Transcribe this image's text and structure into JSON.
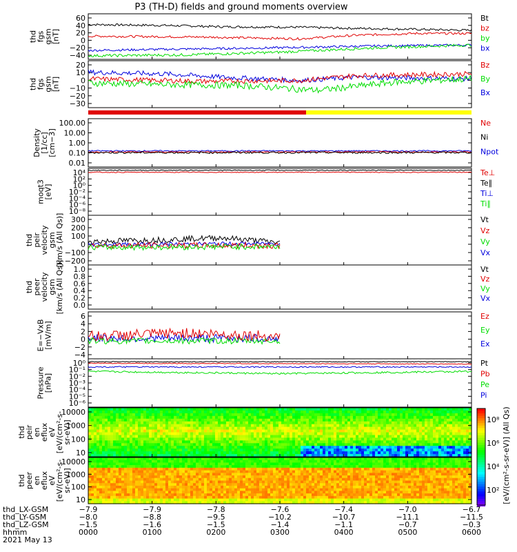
{
  "title": "P3 (TH-D) fields and ground moments overview",
  "colors": {
    "black": "#000000",
    "red": "#e00000",
    "green": "#00dd00",
    "blue": "#0000dd"
  },
  "chart_data": [
    {
      "type": "line",
      "ylabel": [
        "thd",
        "fgs",
        "gsm",
        "[nT]"
      ],
      "yticks": [
        "60",
        "40",
        "20",
        "0",
        "−20",
        "−40"
      ],
      "ylim": [
        -40,
        62
      ],
      "legend": [
        {
          "name": "Bt",
          "color": "black"
        },
        {
          "name": "bz",
          "color": "red"
        },
        {
          "name": "by",
          "color": "green"
        },
        {
          "name": "bx",
          "color": "blue"
        }
      ],
      "series": [
        {
          "name": "Bt",
          "color": "black",
          "knots": [
            [
              0,
              38
            ],
            [
              0.2,
              36
            ],
            [
              0.35,
              33
            ],
            [
              0.55,
              32
            ],
            [
              0.65,
              30
            ],
            [
              0.8,
              28
            ],
            [
              1,
              25
            ]
          ],
          "noise": 2.5
        },
        {
          "name": "bz",
          "color": "red",
          "knots": [
            [
              0,
              12
            ],
            [
              0.3,
              10
            ],
            [
              0.55,
              6
            ],
            [
              0.7,
              14
            ],
            [
              0.85,
              18
            ],
            [
              1,
              18
            ]
          ],
          "noise": 2.5
        },
        {
          "name": "bx",
          "color": "blue",
          "knots": [
            [
              0,
              -20
            ],
            [
              0.25,
              -17
            ],
            [
              0.5,
              -14
            ],
            [
              0.75,
              -10
            ],
            [
              1,
              -8
            ]
          ],
          "noise": 2.5
        },
        {
          "name": "by",
          "color": "green",
          "knots": [
            [
              0,
              -32
            ],
            [
              0.25,
              -30
            ],
            [
              0.5,
              -24
            ],
            [
              0.75,
              -14
            ],
            [
              1,
              -8
            ]
          ],
          "noise": 3
        }
      ]
    },
    {
      "type": "line",
      "ylabel": [
        "thd",
        "fgs",
        "gsm",
        "[nT]"
      ],
      "yticks": [
        "20",
        "10",
        "0",
        "−10",
        "−20",
        "−30"
      ],
      "ylim": [
        -35,
        22
      ],
      "legend": [
        {
          "name": "Bz",
          "color": "red"
        },
        {
          "name": "By",
          "color": "green"
        },
        {
          "name": "Bx",
          "color": "blue"
        }
      ],
      "series": [
        {
          "name": "Bx",
          "color": "blue",
          "knots": [
            [
              0,
              8
            ],
            [
              0.2,
              6
            ],
            [
              0.35,
              2
            ],
            [
              0.55,
              -2
            ],
            [
              0.7,
              2
            ],
            [
              1,
              0
            ]
          ],
          "noise": 3
        },
        {
          "name": "Bz",
          "color": "red",
          "knots": [
            [
              0,
              0
            ],
            [
              0.3,
              -3
            ],
            [
              0.55,
              -2
            ],
            [
              0.7,
              4
            ],
            [
              1,
              6
            ]
          ],
          "noise": 3
        },
        {
          "name": "By",
          "color": "green",
          "knots": [
            [
              0,
              -5
            ],
            [
              0.2,
              -7
            ],
            [
              0.4,
              -8
            ],
            [
              0.6,
              -14
            ],
            [
              0.8,
              -4
            ],
            [
              1,
              0
            ]
          ],
          "noise": 4
        }
      ]
    },
    {
      "type": "line",
      "ylabel": [
        "Density",
        "[1/cc]",
        "[cm−3]"
      ],
      "yticks": [
        "100.00",
        "10.00",
        "1.00",
        "0.10",
        "0.01"
      ],
      "ylim": [
        -2,
        2.2
      ],
      "log": true,
      "legend": [
        {
          "name": "Ne",
          "color": "red"
        },
        {
          "name": "Ni",
          "color": "black"
        },
        {
          "name": "Npot",
          "color": "blue"
        }
      ],
      "series": [
        {
          "name": "Npot",
          "color": "blue",
          "knots": [
            [
              0,
              -0.6
            ],
            [
              1,
              -0.6
            ]
          ],
          "noise": 0.05
        },
        {
          "name": "Ne",
          "color": "red",
          "knots": [
            [
              0,
              -0.7
            ],
            [
              1,
              -0.7
            ]
          ],
          "noise": 0.05
        },
        {
          "name": "Ni",
          "color": "black",
          "knots": [
            [
              0,
              -0.75
            ],
            [
              1,
              -0.75
            ]
          ],
          "noise": 0.08
        }
      ]
    },
    {
      "type": "line",
      "ylabel": [
        "moqt3",
        "[eV]"
      ],
      "yticks": [
        "10⁴",
        "10²",
        "10⁰",
        "10⁻²",
        "10⁻⁴",
        "10⁻⁶",
        "10⁻⁸"
      ],
      "ylim": [
        -8,
        4
      ],
      "log": true,
      "legend": [
        {
          "name": "Te⊥",
          "color": "red"
        },
        {
          "name": "Te∥",
          "color": "black"
        },
        {
          "name": "Ti⊥",
          "color": "blue"
        },
        {
          "name": "Ti∥",
          "color": "green"
        }
      ],
      "series": [
        {
          "name": "Te∥",
          "color": "black",
          "knots": [
            [
              0,
              3.5
            ],
            [
              1,
              3.5
            ]
          ],
          "noise": 0.1
        },
        {
          "name": "Te⊥",
          "color": "red",
          "knots": [
            [
              0,
              3
            ],
            [
              1,
              3
            ]
          ],
          "noise": 0.1
        }
      ]
    },
    {
      "type": "line",
      "ylabel": [
        "thd",
        "peir",
        "velocity",
        "gsm",
        "[km/s (All Qs)]"
      ],
      "yticks": [
        "300",
        "200",
        "100",
        "0",
        "−100",
        "−200"
      ],
      "ylim": [
        -200,
        310
      ],
      "legend": [
        {
          "name": "Vt",
          "color": "black"
        },
        {
          "name": "Vz",
          "color": "red"
        },
        {
          "name": "Vy",
          "color": "green"
        },
        {
          "name": "Vx",
          "color": "blue"
        }
      ],
      "series": [
        {
          "name": "Vt",
          "color": "black",
          "knots": [
            [
              0,
              40
            ],
            [
              0.2,
              60
            ],
            [
              0.35,
              80
            ],
            [
              0.5,
              30
            ]
          ],
          "noise": 30,
          "xmax": 0.5
        },
        {
          "name": "Vx",
          "color": "blue",
          "knots": [
            [
              0,
              10
            ],
            [
              0.5,
              20
            ]
          ],
          "noise": 20,
          "xmax": 0.5
        },
        {
          "name": "Vz",
          "color": "red",
          "knots": [
            [
              0,
              0
            ],
            [
              0.5,
              0
            ]
          ],
          "noise": 30,
          "xmax": 0.5
        },
        {
          "name": "Vy",
          "color": "green",
          "knots": [
            [
              0,
              -20
            ],
            [
              0.5,
              -10
            ]
          ],
          "noise": 30,
          "xmax": 0.5
        }
      ]
    },
    {
      "type": "line",
      "ylabel": [
        "thd",
        "peer",
        "velocity",
        "gsm",
        "[km/s (All Qs)]"
      ],
      "yticks": [
        "1.0",
        "0.8",
        "0.6",
        "0.4",
        "0.2",
        "0.0"
      ],
      "ylim": [
        0,
        1
      ],
      "legend": [
        {
          "name": "Vt",
          "color": "black"
        },
        {
          "name": "Vz",
          "color": "red"
        },
        {
          "name": "Vy",
          "color": "green"
        },
        {
          "name": "Vx",
          "color": "blue"
        }
      ],
      "series": []
    },
    {
      "type": "line",
      "ylabel": [
        "E=−VxB",
        "[mV/m]"
      ],
      "yticks": [
        "6",
        "4",
        "2",
        "0",
        "−2",
        "−4"
      ],
      "ylim": [
        -4,
        6.5
      ],
      "legend": [
        {
          "name": "Ez",
          "color": "red"
        },
        {
          "name": "Ey",
          "color": "green"
        },
        {
          "name": "Ex",
          "color": "blue"
        }
      ],
      "series": [
        {
          "name": "Ex",
          "color": "blue",
          "knots": [
            [
              0,
              0.6
            ],
            [
              0.5,
              0.6
            ]
          ],
          "noise": 0.9,
          "xmax": 0.5
        },
        {
          "name": "Ey",
          "color": "green",
          "knots": [
            [
              0,
              0
            ],
            [
              0.5,
              0
            ]
          ],
          "noise": 0.7,
          "xmax": 0.5
        },
        {
          "name": "Ez",
          "color": "red",
          "knots": [
            [
              0,
              1
            ],
            [
              0.25,
              1.8
            ],
            [
              0.5,
              1
            ]
          ],
          "noise": 1.2,
          "xmax": 0.5
        }
      ]
    },
    {
      "type": "line",
      "ylabel": [
        "Pressure",
        "[nPa]"
      ],
      "yticks": [
        "10⁰",
        "10⁻¹",
        "10⁻²",
        "10⁻³",
        "10⁻⁴",
        "10⁻⁵",
        "10⁻⁶"
      ],
      "ylim": [
        -6,
        0.5
      ],
      "log": true,
      "legend": [
        {
          "name": "Pt",
          "color": "black"
        },
        {
          "name": "Pb",
          "color": "red"
        },
        {
          "name": "Pe",
          "color": "green"
        },
        {
          "name": "Pi",
          "color": "blue"
        }
      ],
      "series": [
        {
          "name": "Pt",
          "color": "black",
          "knots": [
            [
              0,
              0.1
            ],
            [
              1,
              0.1
            ]
          ],
          "noise": 0.05
        },
        {
          "name": "Pb",
          "color": "red",
          "knots": [
            [
              0,
              -0.1
            ],
            [
              1,
              -0.2
            ]
          ],
          "noise": 0.05
        },
        {
          "name": "Pi",
          "color": "blue",
          "knots": [
            [
              0,
              -0.6
            ],
            [
              1,
              -0.6
            ]
          ],
          "noise": 0.08
        },
        {
          "name": "Pe",
          "color": "green",
          "knots": [
            [
              0,
              -1.2
            ],
            [
              0.5,
              -1.5
            ],
            [
              1,
              -1.2
            ]
          ],
          "noise": 0.12
        }
      ]
    },
    {
      "type": "heatmap",
      "ylabel": [
        "thd",
        "peir",
        "en",
        "eflux",
        "eV",
        "[eV/(cm²-s-",
        "sr-eV)]"
      ],
      "yticks": [
        "10000",
        "1000",
        "100",
        "10"
      ],
      "ylim": [
        1,
        4.2
      ],
      "log": true
    },
    {
      "type": "heatmap",
      "ylabel": [
        "thd",
        "peer",
        "en",
        "eflux",
        "eV",
        "[eV/(cm²-s-",
        "sr-eV)]"
      ],
      "yticks": [
        "10000",
        "1000",
        "100",
        "10"
      ],
      "ylim": [
        1,
        4.2
      ],
      "log": true
    }
  ],
  "colorbar": {
    "ticks": [
      "10⁸",
      "10⁶",
      "10⁴",
      "10²"
    ],
    "label": "[eV/(cm²-s-sr-eV)] (All Qs)"
  },
  "x_axis": {
    "ticks": [
      "0000",
      "0100",
      "0200",
      "0300",
      "0400",
      "0500",
      "0600"
    ],
    "rows": [
      {
        "label": "thd_LX-GSM",
        "values": [
          "−7.9",
          "−7.9",
          "−7.8",
          "−7.6",
          "−7.4",
          "−7.0",
          "−6.7"
        ]
      },
      {
        "label": "thd_LY-GSM",
        "values": [
          "−8.0",
          "−8.8",
          "−9.5",
          "−10.2",
          "−10.7",
          "−11.1",
          "−11.5"
        ]
      },
      {
        "label": "thd_LZ-GSM",
        "values": [
          "−1.5",
          "−1.6",
          "−1.5",
          "−1.4",
          "−1.1",
          "−0.7",
          "−0.3"
        ]
      },
      {
        "label": "hhmm",
        "values": [
          "0000",
          "0100",
          "0200",
          "0300",
          "0400",
          "0500",
          "0600"
        ]
      }
    ],
    "date": "2021 May 13"
  }
}
